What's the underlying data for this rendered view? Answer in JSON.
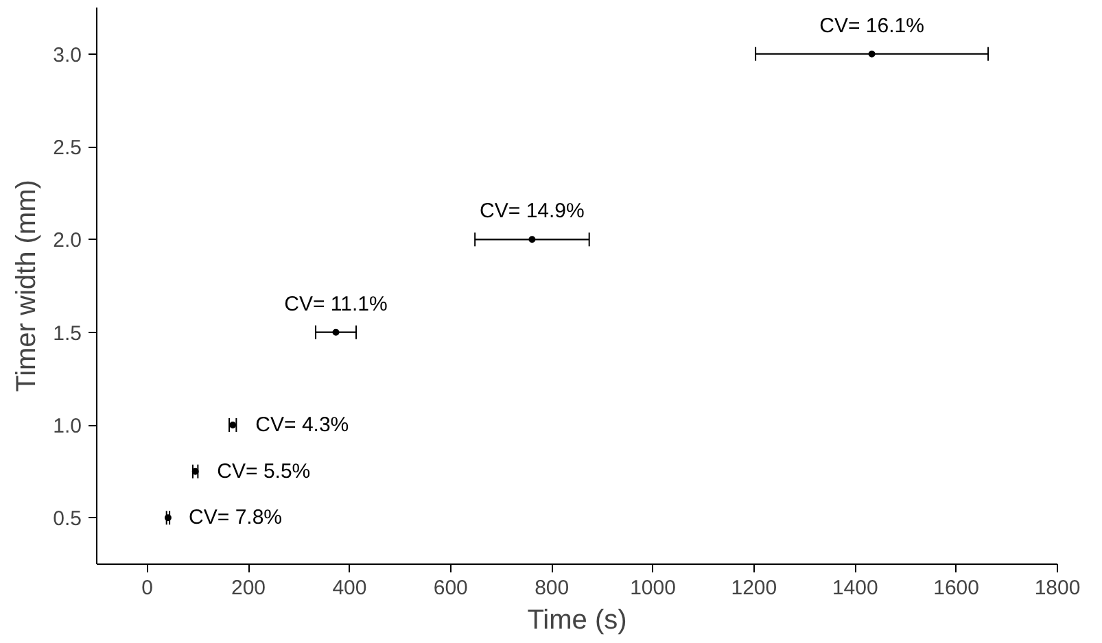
{
  "chart_data": {
    "type": "scatter",
    "xlabel": "Time (s)",
    "ylabel": "Timer width (mm)",
    "x": [
      41,
      95,
      169,
      373,
      761,
      1433
    ],
    "series": [
      {
        "color": "#000000",
        "values": [
          0.5,
          0.75,
          1.0,
          1.5,
          2.0,
          3.0
        ],
        "xerrors": [
          3,
          5,
          7,
          40,
          113,
          230
        ]
      }
    ],
    "xlim": [
      -100,
      1800
    ],
    "xticks": [
      0,
      200,
      400,
      600,
      800,
      1000,
      1200,
      1400,
      1600,
      1800
    ],
    "ylim": [
      0.25,
      3.25
    ],
    "yticks": [
      {
        "value": 0.5,
        "label": "0.5"
      },
      {
        "value": 1.0,
        "label": "1.0"
      },
      {
        "value": 1.5,
        "label": "1.5"
      },
      {
        "value": 2.0,
        "label": "2.0"
      },
      {
        "value": 2.5,
        "label": "2.5"
      },
      {
        "value": 3.0,
        "label": "3.0"
      }
    ],
    "grid": false,
    "marker": "circle",
    "annotations": [
      {
        "text": "CV= 7.8%",
        "x": 41,
        "y": 0.5
      },
      {
        "text": "CV= 5.5%",
        "x": 95,
        "y": 0.75
      },
      {
        "text": "CV= 4.3%",
        "x": 169,
        "y": 1.0
      },
      {
        "text": "CV= 11.1%",
        "x": 373,
        "y": 1.5
      },
      {
        "text": "CV= 14.9%",
        "x": 761,
        "y": 2.0
      },
      {
        "text": "CV= 16.1%",
        "x": 1433,
        "y": 3.0
      }
    ]
  }
}
